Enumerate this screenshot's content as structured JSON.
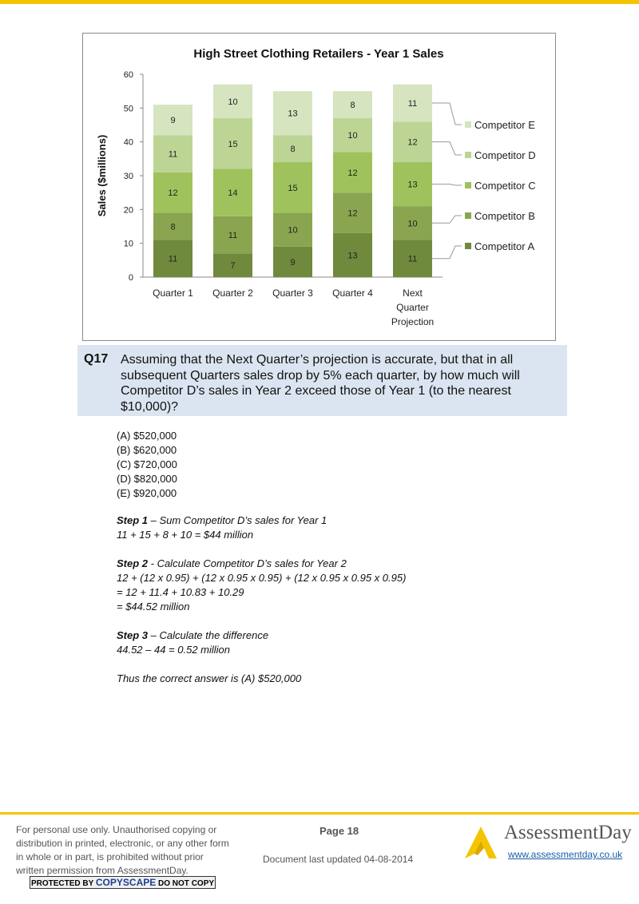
{
  "chart_data": {
    "type": "bar",
    "stacked": true,
    "title": "High Street Clothing Retailers - Year 1 Sales",
    "ylabel": "Sales ($millions)",
    "xlabel": "",
    "ylim": [
      0,
      60
    ],
    "yticks": [
      0,
      10,
      20,
      30,
      40,
      50,
      60
    ],
    "grid": false,
    "legend_position": "right",
    "categories": [
      [
        "Quarter 1"
      ],
      [
        "Quarter 2"
      ],
      [
        "Quarter 3"
      ],
      [
        "Quarter 4"
      ],
      [
        "Next",
        "Quarter",
        "Projection"
      ]
    ],
    "series": [
      {
        "name": "Competitor A",
        "values": [
          11,
          7,
          9,
          13,
          11
        ],
        "color": "#6f8a3c"
      },
      {
        "name": "Competitor B",
        "values": [
          8,
          11,
          10,
          12,
          10
        ],
        "color": "#8aa550"
      },
      {
        "name": "Competitor C",
        "values": [
          12,
          14,
          15,
          12,
          13
        ],
        "color": "#9fc25c"
      },
      {
        "name": "Competitor D",
        "values": [
          11,
          15,
          8,
          10,
          12
        ],
        "color": "#bcd594"
      },
      {
        "name": "Competitor E",
        "values": [
          9,
          10,
          13,
          8,
          11
        ],
        "color": "#d6e4c0"
      }
    ]
  },
  "question": {
    "number": "Q17",
    "text": "Assuming that the Next Quarter’s projection is accurate, but that in all subsequent Quarters sales drop by 5% each quarter, by how much will Competitor D’s sales in Year 2 exceed those of Year 1 (to the nearest $10,000)?"
  },
  "answers": [
    "(A) $520,000",
    "(B) $620,000",
    "(C) $720,000",
    "(D) $820,000",
    "(E) $920,000"
  ],
  "solution": {
    "step1_label": "Step 1",
    "step1_title": " – Sum Competitor D’s sales for Year 1",
    "step1_line1": "11 + 15 + 8 + 10 = $44 million",
    "step2_label": "Step 2",
    "step2_title": " - Calculate Competitor D’s sales for Year 2",
    "step2_line1": "12 + (12 x 0.95) + (12 x 0.95 x 0.95) + (12 x 0.95 x 0.95 x 0.95)",
    "step2_line2": "= 12 + 11.4 + 10.83 + 10.29",
    "step2_line3": "= $44.52 million",
    "step3_label": "Step 3",
    "step3_title": " – Calculate the difference",
    "step3_line1": "44.52 – 44 = 0.52 million",
    "conclusion": "Thus the correct answer is (A) $520,000"
  },
  "footer": {
    "notice": "For personal use only. Unauthorised copying or distribution in printed, electronic, or any other form in whole or in part, is prohibited without prior written permission from AssessmentDay.",
    "copyscape_pre": "PROTECTED BY ",
    "copyscape_brand": "COPYSCAPE",
    "copyscape_post": " DO NOT COPY",
    "page": "Page 18",
    "updated": "Document last updated 04-08-2014",
    "brand": "AssessmentDay",
    "url": "www.assessmentday.co.uk",
    "accent": "#f5c400"
  }
}
